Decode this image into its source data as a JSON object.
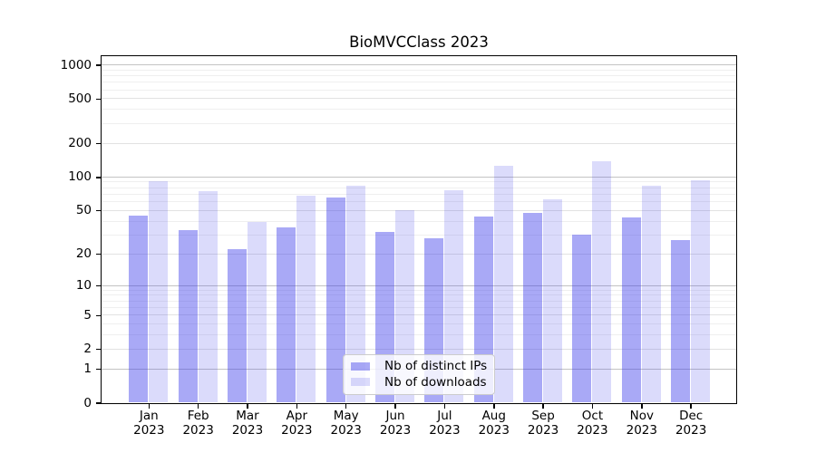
{
  "title": "BioMVCClass 2023",
  "colors": {
    "bar_base": "#3c3ceb",
    "bar_ips_rendered": "#a9a9f7",
    "bar_downloads_rendered": "#dbdbfa",
    "grid_major": "#c3c3c3",
    "grid_minor": "#efefef",
    "axis": "#000000",
    "legend_border": "#cccccc"
  },
  "legend": {
    "items": [
      {
        "label": "Nb of distinct IPs",
        "series": "ips"
      },
      {
        "label": "Nb of downloads",
        "series": "dls"
      }
    ],
    "position": "lower center"
  },
  "chart_data": {
    "type": "bar",
    "title": "BioMVCClass 2023",
    "categories": [
      "Jan 2023",
      "Feb 2023",
      "Mar 2023",
      "Apr 2023",
      "May 2023",
      "Jun 2023",
      "Jul 2023",
      "Aug 2023",
      "Sep 2023",
      "Oct 2023",
      "Nov 2023",
      "Dec 2023"
    ],
    "month_labels": [
      "Jan",
      "Feb",
      "Mar",
      "Apr",
      "May",
      "Jun",
      "Jul",
      "Aug",
      "Sep",
      "Oct",
      "Nov",
      "Dec"
    ],
    "year_label": "2023",
    "series": [
      {
        "name": "Nb of distinct IPs",
        "key": "ips",
        "values": [
          45,
          33,
          22,
          35,
          65,
          32,
          28,
          44,
          47,
          30,
          43,
          27
        ]
      },
      {
        "name": "Nb of downloads",
        "key": "dls",
        "values": [
          92,
          74,
          39,
          68,
          83,
          50,
          76,
          126,
          63,
          139,
          83,
          94
        ]
      }
    ],
    "xlabel": "",
    "ylabel": "",
    "y_scale": "log1p",
    "y_tick_values": [
      0,
      1,
      2,
      5,
      10,
      20,
      50,
      100,
      200,
      500,
      1000
    ],
    "y_major_decades": [
      1,
      10,
      100,
      1000
    ],
    "y_minor_gridlines": [
      3,
      4,
      6,
      7,
      8,
      9,
      30,
      40,
      60,
      70,
      80,
      90,
      300,
      400,
      600,
      700,
      800,
      900
    ],
    "ylim": [
      0,
      1200
    ],
    "grid": true,
    "legend_position": "lower center"
  }
}
